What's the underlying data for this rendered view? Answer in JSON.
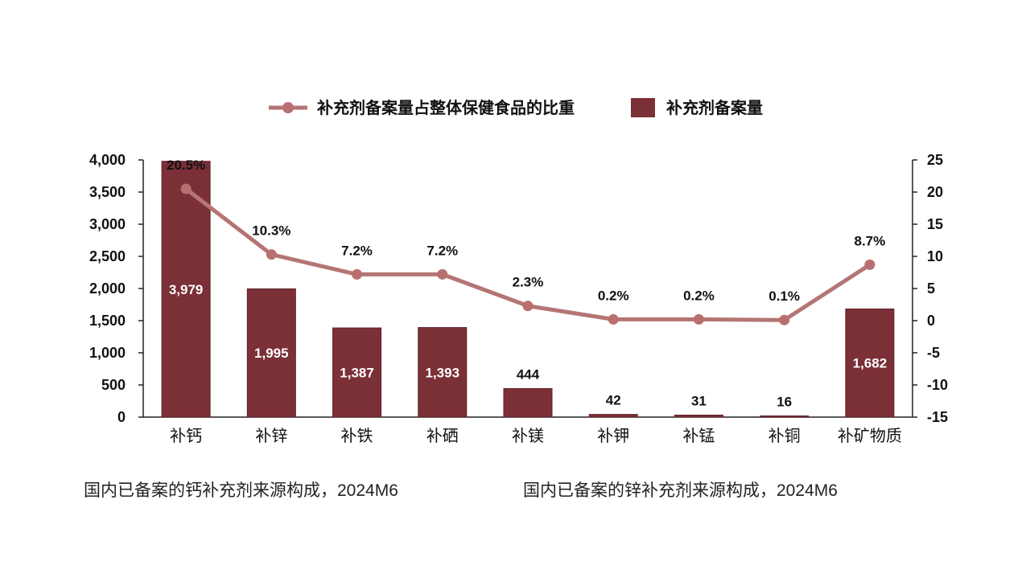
{
  "chart_data": {
    "type": "bar",
    "categories": [
      "补钙",
      "补锌",
      "补铁",
      "补硒",
      "补镁",
      "补钾",
      "补锰",
      "补铜",
      "补矿物质"
    ],
    "series": [
      {
        "name": "补充剂备案量",
        "type": "bar",
        "axis": "left",
        "values": [
          3979,
          1995,
          1387,
          1393,
          444,
          42,
          31,
          16,
          1682
        ],
        "labels": [
          "3,979",
          "1,995",
          "1,387",
          "1,393",
          "444",
          "42",
          "31",
          "16",
          "1,682"
        ]
      },
      {
        "name": "补充剂备案量占整体保健食品的比重",
        "type": "line",
        "axis": "right",
        "values": [
          20.5,
          10.3,
          7.2,
          7.2,
          2.3,
          0.2,
          0.2,
          0.1,
          8.7
        ],
        "labels": [
          "20.5%",
          "10.3%",
          "7.2%",
          "7.2%",
          "2.3%",
          "0.2%",
          "0.2%",
          "0.1%",
          "8.7%"
        ]
      }
    ],
    "y_left": {
      "range": [
        0,
        4000
      ],
      "ticks": [
        "0",
        "500",
        "1,000",
        "1,500",
        "2,000",
        "2,500",
        "3,000",
        "3,500",
        "4,000"
      ]
    },
    "y_right": {
      "range": [
        -15,
        25
      ],
      "ticks": [
        "-15",
        "-10",
        "-5",
        "0",
        "5",
        "10",
        "15",
        "20",
        "25"
      ]
    },
    "legend_position": "top-center",
    "grid": false,
    "colors": {
      "bar": "#7b2f37",
      "bar_edge": "#5e2028",
      "line": "#b47574",
      "marker": "#b96f70",
      "axis": "#222222"
    }
  },
  "footer": {
    "left_caption": "国内已备案的钙补充剂来源构成，2024M6",
    "right_caption": "国内已备案的锌补充剂来源构成，2024M6"
  }
}
